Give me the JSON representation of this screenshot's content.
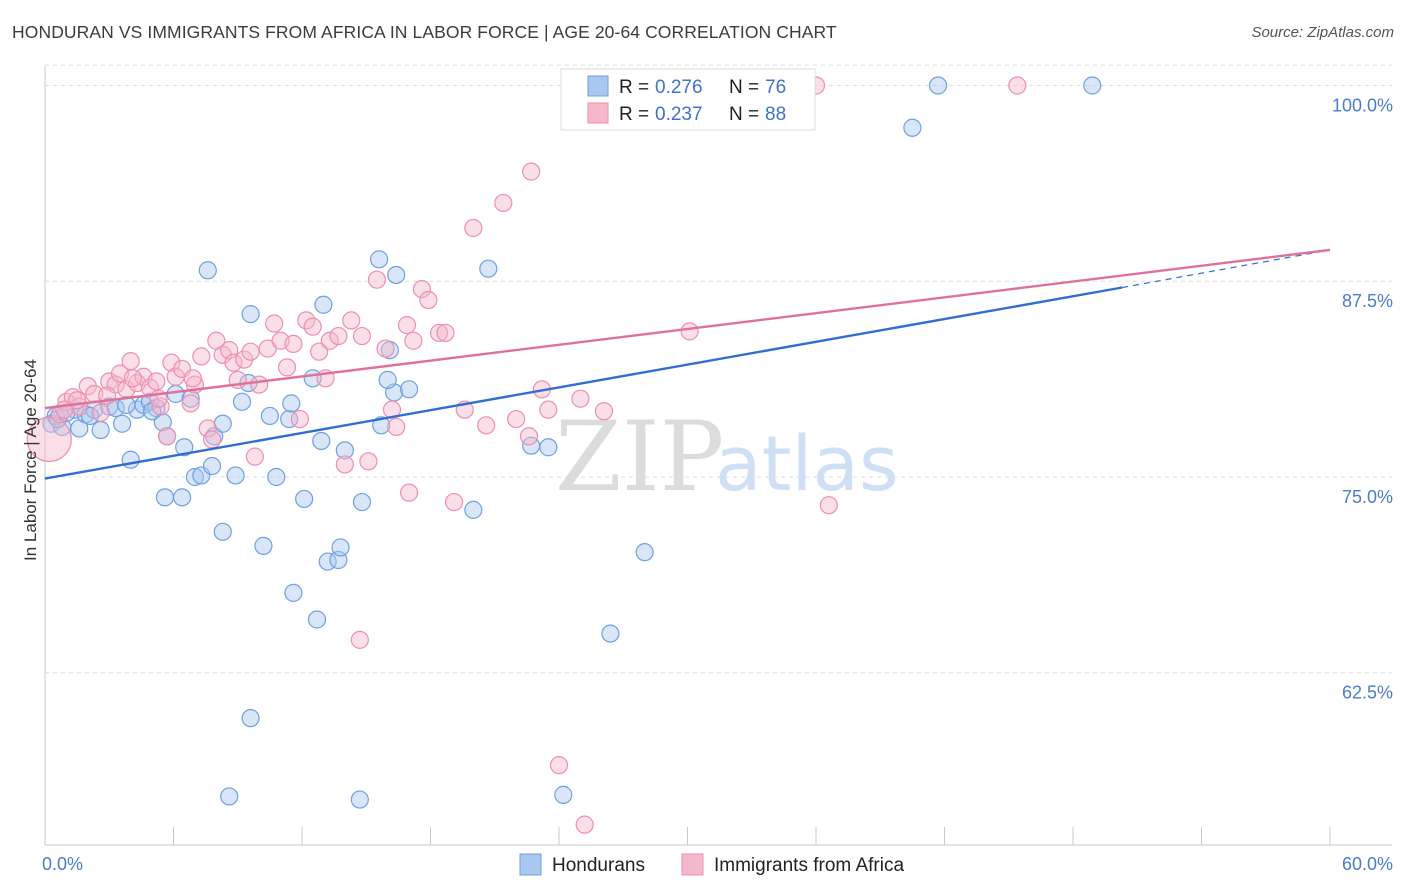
{
  "header": {
    "title": "HONDURAN VS IMMIGRANTS FROM AFRICA IN LABOR FORCE | AGE 20-64 CORRELATION CHART",
    "source": "Source: ZipAtlas.com"
  },
  "watermark": {
    "zip": "ZIP",
    "atlas": "atlas"
  },
  "legend": {
    "r_label": "R =",
    "n_label": "N =",
    "rows": [
      {
        "r": "0.276",
        "n": "76",
        "color": "#a9c8f0"
      },
      {
        "r": "0.237",
        "n": "88",
        "color": "#f5b8cb"
      }
    ]
  },
  "bottom_legend": [
    {
      "label": "Hondurans",
      "color": "#a9c8f0"
    },
    {
      "label": "Immigrants from Africa",
      "color": "#f5b8cb"
    }
  ],
  "chart_data": {
    "type": "scatter",
    "title": "HONDURAN VS IMMIGRANTS FROM AFRICA IN LABOR FORCE | AGE 20-64 CORRELATION CHART",
    "xlabel": "",
    "ylabel": "In Labor Force | Age 20-64",
    "xlim": [
      0,
      60
    ],
    "ylim": [
      51.5,
      101.5
    ],
    "x_tick_labels": [
      "0.0%",
      "60.0%"
    ],
    "y_ticks": [
      62.5,
      75.0,
      87.5,
      100.0
    ],
    "y_tick_labels": [
      "62.5%",
      "75.0%",
      "87.5%",
      "100.0%"
    ],
    "grid": true,
    "legend_position": "top-center",
    "series": [
      {
        "name": "Hondurans",
        "color": "#6fa0e0",
        "fill": "#a9c8f0",
        "trend": {
          "x": [
            0,
            50.3
          ],
          "y": [
            74.9,
            87.1
          ],
          "line_color": "#2f6fd0"
        },
        "trend_extension": {
          "x": [
            50.3,
            60
          ],
          "y": [
            87.1,
            89.5
          ]
        },
        "points": [
          [
            0.3,
            78.4
          ],
          [
            0.5,
            78.9
          ],
          [
            0.8,
            78.2
          ],
          [
            1.4,
            79.3
          ],
          [
            1.6,
            78.1
          ],
          [
            1.9,
            79.0
          ],
          [
            2.3,
            79.3
          ],
          [
            2.6,
            78.0
          ],
          [
            3.0,
            79.5
          ],
          [
            3.3,
            79.4
          ],
          [
            3.6,
            78.4
          ],
          [
            4.0,
            76.1
          ],
          [
            4.3,
            79.3
          ],
          [
            4.6,
            79.6
          ],
          [
            4.9,
            79.8
          ],
          [
            5.2,
            79.4
          ],
          [
            5.5,
            78.5
          ],
          [
            5.7,
            77.6
          ],
          [
            5.6,
            73.7
          ],
          [
            6.1,
            80.3
          ],
          [
            6.4,
            73.7
          ],
          [
            6.5,
            76.9
          ],
          [
            6.8,
            80.0
          ],
          [
            7.0,
            75.0
          ],
          [
            7.3,
            75.1
          ],
          [
            7.6,
            88.2
          ],
          [
            7.8,
            75.7
          ],
          [
            7.9,
            77.6
          ],
          [
            8.3,
            78.4
          ],
          [
            8.3,
            71.5
          ],
          [
            8.9,
            75.1
          ],
          [
            9.2,
            79.8
          ],
          [
            9.5,
            81.0
          ],
          [
            9.6,
            85.4
          ],
          [
            10.2,
            70.6
          ],
          [
            10.5,
            78.9
          ],
          [
            10.8,
            75.0
          ],
          [
            11.4,
            78.7
          ],
          [
            11.5,
            79.7
          ],
          [
            11.6,
            67.6
          ],
          [
            12.1,
            73.6
          ],
          [
            12.5,
            81.3
          ],
          [
            12.7,
            65.9
          ],
          [
            12.9,
            77.3
          ],
          [
            13.0,
            86.0
          ],
          [
            13.2,
            69.6
          ],
          [
            13.7,
            69.7
          ],
          [
            13.8,
            70.5
          ],
          [
            14.0,
            76.7
          ],
          [
            14.8,
            73.4
          ],
          [
            15.7,
            78.3
          ],
          [
            15.6,
            88.9
          ],
          [
            16.3,
            80.4
          ],
          [
            16.4,
            87.9
          ],
          [
            16.1,
            83.1
          ],
          [
            16.0,
            81.2
          ],
          [
            17.0,
            80.6
          ],
          [
            20.0,
            72.9
          ],
          [
            20.7,
            88.3
          ],
          [
            22.7,
            77.0
          ],
          [
            23.5,
            76.9
          ],
          [
            24.9,
            98.3
          ],
          [
            26.4,
            65.0
          ],
          [
            28.0,
            70.2
          ],
          [
            40.5,
            97.3
          ],
          [
            41.7,
            100.0
          ],
          [
            48.9,
            100.0
          ],
          [
            8.6,
            54.6
          ],
          [
            9.6,
            59.6
          ],
          [
            14.7,
            54.4
          ],
          [
            24.2,
            54.7
          ],
          [
            0.6,
            78.7
          ],
          [
            1.0,
            79.1
          ],
          [
            2.1,
            78.9
          ],
          [
            3.8,
            79.6
          ],
          [
            5.0,
            79.2
          ]
        ]
      },
      {
        "name": "Immigrants from Africa",
        "color": "#ee8fae",
        "fill": "#f5b8cb",
        "trend": {
          "x": [
            0,
            60
          ],
          "y": [
            79.4,
            89.5
          ],
          "line_color": "#e0709a"
        },
        "points": [
          [
            0.2,
            77.4
          ],
          [
            0.7,
            79.0
          ],
          [
            1.0,
            79.8
          ],
          [
            1.3,
            80.1
          ],
          [
            1.6,
            79.5
          ],
          [
            2.0,
            80.8
          ],
          [
            2.3,
            80.3
          ],
          [
            2.6,
            79.1
          ],
          [
            3.0,
            81.1
          ],
          [
            3.3,
            80.9
          ],
          [
            3.5,
            81.6
          ],
          [
            3.8,
            80.6
          ],
          [
            4.0,
            82.4
          ],
          [
            4.3,
            81.0
          ],
          [
            4.6,
            81.4
          ],
          [
            4.9,
            80.7
          ],
          [
            5.2,
            81.1
          ],
          [
            5.4,
            79.5
          ],
          [
            5.7,
            77.6
          ],
          [
            5.9,
            82.3
          ],
          [
            6.1,
            81.4
          ],
          [
            6.4,
            81.9
          ],
          [
            6.8,
            79.7
          ],
          [
            7.0,
            80.9
          ],
          [
            7.3,
            82.7
          ],
          [
            7.6,
            78.1
          ],
          [
            7.8,
            77.4
          ],
          [
            8.0,
            83.7
          ],
          [
            8.3,
            82.8
          ],
          [
            8.6,
            83.1
          ],
          [
            8.8,
            82.3
          ],
          [
            9.0,
            81.2
          ],
          [
            9.3,
            82.5
          ],
          [
            9.6,
            83.0
          ],
          [
            9.8,
            76.3
          ],
          [
            10.0,
            80.9
          ],
          [
            10.4,
            83.2
          ],
          [
            10.7,
            84.8
          ],
          [
            11.0,
            83.7
          ],
          [
            11.3,
            82.0
          ],
          [
            11.6,
            83.5
          ],
          [
            11.9,
            78.7
          ],
          [
            12.2,
            85.0
          ],
          [
            12.5,
            84.6
          ],
          [
            12.8,
            83.0
          ],
          [
            13.1,
            81.3
          ],
          [
            13.3,
            83.7
          ],
          [
            13.7,
            84.0
          ],
          [
            14.0,
            75.8
          ],
          [
            14.3,
            85.0
          ],
          [
            14.8,
            84.0
          ],
          [
            15.1,
            76.0
          ],
          [
            15.5,
            87.6
          ],
          [
            15.9,
            83.2
          ],
          [
            16.2,
            79.3
          ],
          [
            16.4,
            78.2
          ],
          [
            16.9,
            84.7
          ],
          [
            17.2,
            83.7
          ],
          [
            17.6,
            87.0
          ],
          [
            17.9,
            86.3
          ],
          [
            18.4,
            84.2
          ],
          [
            18.7,
            84.2
          ],
          [
            19.1,
            73.4
          ],
          [
            19.6,
            79.3
          ],
          [
            20.0,
            90.9
          ],
          [
            20.6,
            78.3
          ],
          [
            21.4,
            92.5
          ],
          [
            22.0,
            78.7
          ],
          [
            22.6,
            77.6
          ],
          [
            23.2,
            80.6
          ],
          [
            23.5,
            79.3
          ],
          [
            25.0,
            80.0
          ],
          [
            26.1,
            79.2
          ],
          [
            22.7,
            94.5
          ],
          [
            30.1,
            84.3
          ],
          [
            36.6,
            73.2
          ],
          [
            36.0,
            100.0
          ],
          [
            45.4,
            100.0
          ],
          [
            24.0,
            56.6
          ],
          [
            25.2,
            52.8
          ],
          [
            14.7,
            64.6
          ],
          [
            17.0,
            74.0
          ],
          [
            1.5,
            79.9
          ],
          [
            2.9,
            80.2
          ],
          [
            4.1,
            81.3
          ],
          [
            5.3,
            80.0
          ],
          [
            6.9,
            81.3
          ],
          [
            0.9,
            79.3
          ]
        ]
      }
    ]
  }
}
